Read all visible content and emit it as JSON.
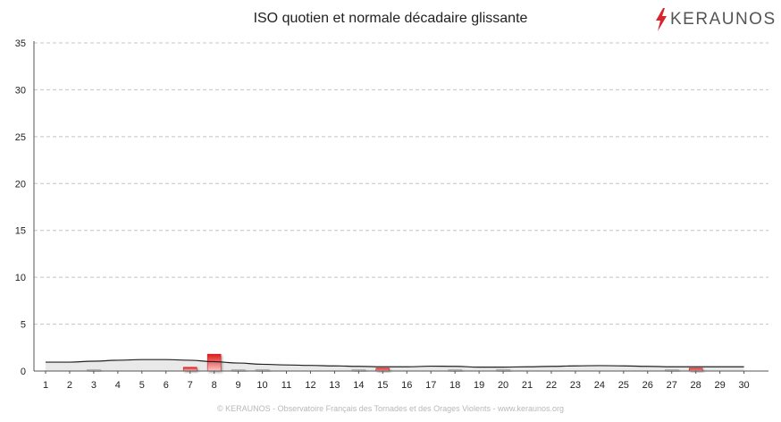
{
  "chart_data": {
    "type": "bar",
    "title": "ISO quotien et normale décadaire glissante",
    "xlabel": "",
    "ylabel": "",
    "categories": [
      "1",
      "2",
      "3",
      "4",
      "5",
      "6",
      "7",
      "8",
      "9",
      "10",
      "11",
      "12",
      "13",
      "14",
      "15",
      "16",
      "17",
      "18",
      "19",
      "20",
      "21",
      "22",
      "23",
      "24",
      "25",
      "26",
      "27",
      "28",
      "29",
      "30"
    ],
    "ylim": [
      0,
      35
    ],
    "yticks": [
      "0",
      "5",
      "10",
      "15",
      "20",
      "25",
      "30",
      "35"
    ],
    "grid": true,
    "legend": "none",
    "series": [
      {
        "type": "bar",
        "values": [
          0,
          0,
          0.1,
          0,
          0,
          0,
          0.4,
          1.8,
          0.05,
          0.15,
          0,
          0,
          0,
          0.1,
          0.3,
          0,
          0,
          0.1,
          0,
          0.15,
          0,
          0,
          0,
          0,
          0,
          0,
          0.1,
          0.3,
          0,
          0
        ],
        "colors": {
          "high": "#e02020",
          "low": "#bbbbbb"
        }
      },
      {
        "type": "line",
        "values": [
          0.95,
          0.95,
          1.05,
          1.15,
          1.22,
          1.22,
          1.15,
          1.0,
          0.85,
          0.72,
          0.65,
          0.6,
          0.55,
          0.5,
          0.45,
          0.45,
          0.52,
          0.5,
          0.42,
          0.42,
          0.45,
          0.5,
          0.55,
          0.58,
          0.55,
          0.5,
          0.45,
          0.45,
          0.45,
          0.45
        ],
        "color": "#222222"
      }
    ]
  },
  "logo": {
    "text": "KERAUNOS",
    "bolt_color": "#d8242c"
  },
  "footer": "© KERAUNOS - Observatoire Français des Tornades et des Orages Violents - www.keraunos.org"
}
